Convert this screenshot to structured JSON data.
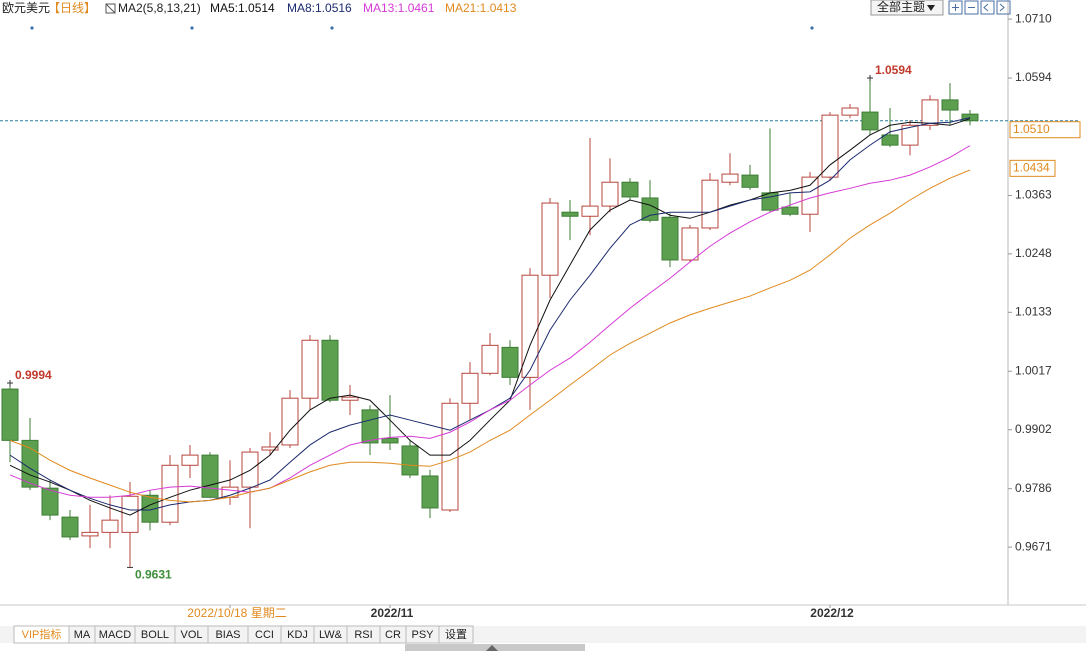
{
  "chart_data": {
    "type": "candlestick",
    "title": "欧元美元",
    "period": "【日线】",
    "indicator": "MA2(5,8,13,21)",
    "x": [
      null,
      null,
      null,
      null,
      null,
      null,
      null,
      null,
      null,
      null,
      null,
      "2022/10/18 星期二",
      null,
      null,
      null,
      null,
      null,
      null,
      null,
      "2022/11",
      null,
      null,
      null,
      null,
      null,
      null,
      null,
      null,
      null,
      null,
      null,
      null,
      null,
      null,
      null,
      null,
      null,
      null,
      null,
      null,
      null,
      "2022/12",
      null,
      null,
      null,
      null,
      null,
      null,
      null
    ],
    "open": [
      0.9982,
      0.9881,
      0.9787,
      0.973,
      0.9693,
      0.97,
      0.97,
      0.9773,
      0.972,
      0.9832,
      0.9852,
      0.9769,
      0.9789,
      0.9862,
      0.9872,
      0.9964,
      1.0078,
      0.996,
      0.9941,
      0.9885,
      0.987,
      0.9811,
      0.9744,
      0.9954,
      1.0013,
      1.0064,
      1.0005,
      1.0206,
      1.033,
      1.0322,
      1.0342,
      1.0389,
      1.0358,
      1.032,
      1.0236,
      1.0299,
      1.0389,
      1.0403,
      1.0368,
      1.034,
      1.0326,
      1.0399,
      1.0521,
      1.0527,
      1.0482,
      1.0462,
      1.0501,
      1.0551,
      1.0523
    ],
    "high": [
      0.9994,
      0.9925,
      0.9803,
      0.9744,
      0.9754,
      0.9773,
      0.9799,
      0.9783,
      0.9852,
      0.9872,
      0.9858,
      0.9842,
      0.9866,
      0.9897,
      0.998,
      1.0088,
      1.0088,
      0.999,
      0.995,
      0.997,
      0.9882,
      0.9823,
      0.9964,
      1.0035,
      1.0092,
      1.0078,
      1.022,
      1.0358,
      1.0354,
      1.0476,
      1.0436,
      1.0397,
      1.0393,
      1.0328,
      1.0305,
      1.0407,
      1.0446,
      1.0423,
      1.0495,
      1.0368,
      1.0409,
      1.0527,
      1.0543,
      1.0594,
      1.0535,
      1.0511,
      1.056,
      1.0584,
      1.0531
    ],
    "low": [
      0.9838,
      0.9783,
      0.9724,
      0.9685,
      0.9669,
      0.9669,
      0.9631,
      0.9704,
      0.9714,
      0.9807,
      0.9767,
      0.9754,
      0.9708,
      0.9852,
      0.9866,
      0.9941,
      0.9956,
      0.9931,
      0.9852,
      0.9862,
      0.9807,
      0.9728,
      0.974,
      0.9921,
      1.0009,
      0.999,
      0.9941,
      1.0161,
      1.0275,
      1.0285,
      1.033,
      1.0354,
      1.031,
      1.0222,
      1.0232,
      1.0295,
      1.0383,
      1.0374,
      1.033,
      1.0322,
      1.0291,
      1.0393,
      1.0515,
      1.0482,
      1.0458,
      1.0442,
      1.0492,
      1.0501,
      1.0501
    ],
    "close": [
      0.9881,
      0.9789,
      0.9734,
      0.9691,
      0.97,
      0.9724,
      0.9771,
      0.972,
      0.9832,
      0.9852,
      0.9769,
      0.9789,
      0.9858,
      0.9868,
      0.9964,
      1.0078,
      0.996,
      0.9966,
      0.9876,
      0.9876,
      0.9813,
      0.9748,
      0.9954,
      1.0013,
      1.0068,
      1.0005,
      1.0206,
      1.0348,
      1.0322,
      1.0342,
      1.0389,
      1.036,
      1.0314,
      1.0236,
      1.0299,
      1.0393,
      1.0405,
      1.0379,
      1.0334,
      1.0326,
      1.0399,
      1.0521,
      1.0535,
      1.0492,
      1.0462,
      1.0501,
      1.0551,
      1.0531,
      1.051
    ],
    "up_color": "#b8453d",
    "down_color": "#5b9f4f",
    "series": [
      {
        "name": "MA5",
        "legend_label": "MA5:1.0514",
        "color": "#111111",
        "values": [
          0.9832,
          0.9813,
          0.9799,
          0.9783,
          0.9763,
          0.9748,
          0.9734,
          0.9754,
          0.9769,
          0.9783,
          0.9793,
          0.9803,
          0.9822,
          0.9852,
          0.9901,
          0.9941,
          0.9964,
          0.997,
          0.996,
          0.9921,
          0.9881,
          0.9852,
          0.9852,
          0.9881,
          0.9921,
          0.996,
          1.0068,
          1.0157,
          1.0226,
          1.0295,
          1.0334,
          1.0354,
          1.0344,
          1.0324,
          1.0318,
          1.033,
          1.0344,
          1.0354,
          1.0368,
          1.0373,
          1.0383,
          1.0423,
          1.0452,
          1.0482,
          1.0501,
          1.0507,
          1.0505,
          1.0501,
          1.0514
        ]
      },
      {
        "name": "MA8",
        "legend_label": "MA8:1.0516",
        "color": "#1c2a6e",
        "values": [
          0.9852,
          0.9826,
          0.9803,
          0.9783,
          0.9767,
          0.9754,
          0.9744,
          0.9744,
          0.9754,
          0.976,
          0.9763,
          0.9773,
          0.9787,
          0.9803,
          0.9838,
          0.9872,
          0.9897,
          0.9911,
          0.9921,
          0.9931,
          0.9921,
          0.9911,
          0.9901,
          0.9921,
          0.9941,
          0.9964,
          1.0019,
          1.0098,
          1.0157,
          1.0206,
          1.0259,
          1.0305,
          1.0324,
          1.033,
          1.033,
          1.033,
          1.0342,
          1.0354,
          1.036,
          1.0368,
          1.037,
          1.0393,
          1.0433,
          1.0462,
          1.0488,
          1.0497,
          1.0505,
          1.0507,
          1.0516
        ]
      },
      {
        "name": "MA13",
        "legend_label": "MA13:1.0461",
        "color": "#d63ad6",
        "values": [
          0.9813,
          0.9797,
          0.9783,
          0.9773,
          0.9769,
          0.9769,
          0.9773,
          0.9783,
          0.9789,
          0.9791,
          0.9787,
          0.9783,
          0.9779,
          0.9787,
          0.9807,
          0.9832,
          0.9852,
          0.9872,
          0.9881,
          0.9887,
          0.9889,
          0.9885,
          0.9897,
          0.9917,
          0.9941,
          0.996,
          0.999,
          1.0019,
          1.0043,
          1.0074,
          1.0108,
          1.0141,
          1.0171,
          1.02,
          1.0232,
          1.0263,
          1.0289,
          1.0311,
          1.033,
          1.0344,
          1.0358,
          1.0368,
          1.0377,
          1.0387,
          1.0393,
          1.0403,
          1.0419,
          1.0438,
          1.0461
        ]
      },
      {
        "name": "MA21",
        "legend_label": "MA21:1.0413",
        "color": "#e08a1e",
        "values": [
          0.9881,
          0.9866,
          0.9842,
          0.9822,
          0.9807,
          0.9793,
          0.9779,
          0.9769,
          0.9763,
          0.976,
          0.9763,
          0.9769,
          0.9779,
          0.9787,
          0.9803,
          0.9819,
          0.9832,
          0.9838,
          0.9838,
          0.9836,
          0.9832,
          0.983,
          0.9842,
          0.9858,
          0.9881,
          0.9901,
          0.9931,
          0.996,
          0.999,
          1.0019,
          1.0049,
          1.0072,
          1.0092,
          1.0112,
          1.0128,
          1.0141,
          1.0153,
          1.0165,
          1.0181,
          1.0196,
          1.0216,
          1.0246,
          1.0279,
          1.0305,
          1.0328,
          1.0354,
          1.0377,
          1.0397,
          1.0413
        ]
      }
    ],
    "ylim": [
      0.9561,
      1.072
    ],
    "yticks": [
      {
        "value": 1.071,
        "label": "1.0710"
      },
      1.0594,
      1.0363,
      1.0248,
      1.0133,
      1.0017,
      0.9902,
      0.9786,
      0.9671
    ],
    "high_labels": [
      0.9994,
      1.0594
    ],
    "low_labels": [
      0.9631
    ],
    "last_price": {
      "value": 1.051,
      "label": "1.0510"
    },
    "ma_tag": 1.0434
  },
  "header": {
    "theme_button": "全部主题"
  },
  "toolbar": {
    "tabs": [
      "VIP指标",
      "MA",
      "MACD",
      "BOLL",
      "VOL",
      "BIAS",
      "CCI",
      "KDJ",
      "LW&",
      "RSI",
      "CR",
      "PSY",
      "设置"
    ]
  }
}
